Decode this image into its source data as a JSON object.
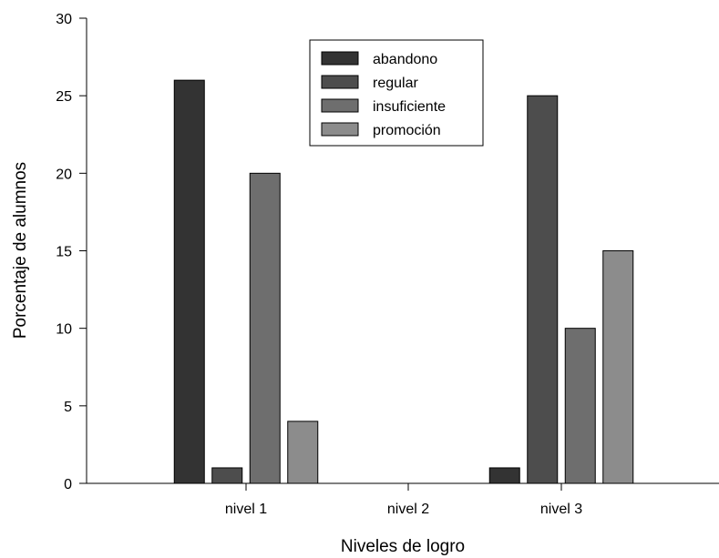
{
  "chart_data": {
    "type": "bar",
    "categories": [
      "nivel 1",
      "nivel 2",
      "nivel 3"
    ],
    "series": [
      {
        "name": "abandono",
        "color": "#333333",
        "values": [
          26,
          0,
          1
        ]
      },
      {
        "name": "regular",
        "color": "#4d4d4d",
        "values": [
          1,
          0,
          25
        ]
      },
      {
        "name": "insuficiente",
        "color": "#6e6e6e",
        "values": [
          20,
          0,
          10
        ]
      },
      {
        "name": "promoción",
        "color": "#8c8c8c",
        "values": [
          4,
          0,
          15
        ]
      }
    ],
    "xlabel": "Niveles de logro",
    "ylabel": "Porcentaje de alumnos",
    "ylim": [
      0,
      30
    ],
    "yticks": [
      0,
      5,
      10,
      15,
      20,
      25,
      30
    ],
    "grid": false,
    "legend_position": "top-center"
  }
}
